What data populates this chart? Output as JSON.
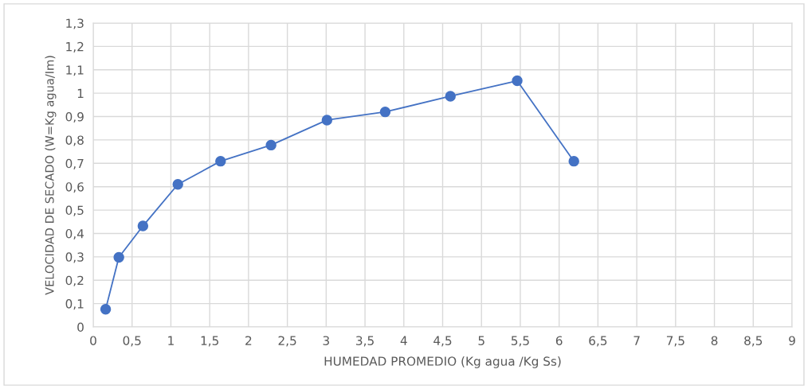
{
  "chart_data": {
    "type": "line",
    "xlabel": "HUMEDAD PROMEDIO (Kg agua /Kg Ss)",
    "ylabel": "VELOCIDAD DE SECADO (W=Kg agua/Im)",
    "series": [
      {
        "color": "#4472c4",
        "x": [
          0.16,
          0.33,
          0.64,
          1.09,
          1.64,
          2.29,
          3.01,
          3.76,
          4.6,
          5.46,
          6.19
        ],
        "values": [
          0.076,
          0.298,
          0.432,
          0.61,
          0.709,
          0.778,
          0.885,
          0.92,
          0.987,
          1.053,
          0.709
        ]
      }
    ],
    "marker": "circle",
    "grid": true,
    "xlim": [
      0,
      9
    ],
    "ylim": [
      0,
      1.3
    ],
    "xticks": [
      0,
      {
        "value": 0.5,
        "label": "0,5"
      },
      1,
      {
        "value": 1.5,
        "label": "1,5"
      },
      2,
      {
        "value": 2.5,
        "label": "2,5"
      },
      3,
      {
        "value": 3.5,
        "label": "3,5"
      },
      4,
      {
        "value": 4.5,
        "label": "4,5"
      },
      5,
      {
        "value": 5.5,
        "label": "5,5"
      },
      6,
      {
        "value": 6.5,
        "label": "6,5"
      },
      7,
      {
        "value": 7.5,
        "label": "7,5"
      },
      8,
      {
        "value": 8.5,
        "label": "8,5"
      },
      9
    ],
    "yticks": [
      0,
      {
        "value": 0.1,
        "label": "0,1"
      },
      {
        "value": 0.2,
        "label": "0,2"
      },
      {
        "value": 0.3,
        "label": "0,3"
      },
      {
        "value": 0.4,
        "label": "0,4"
      },
      {
        "value": 0.5,
        "label": "0,5"
      },
      {
        "value": 0.6,
        "label": "0,6"
      },
      {
        "value": 0.7,
        "label": "0,7"
      },
      {
        "value": 0.8,
        "label": "0,8"
      },
      {
        "value": 0.9,
        "label": "0,9"
      },
      1,
      {
        "value": 1.1,
        "label": "1,1"
      },
      {
        "value": 1.2,
        "label": "1,2"
      },
      {
        "value": 1.3,
        "label": "1,3"
      }
    ]
  }
}
